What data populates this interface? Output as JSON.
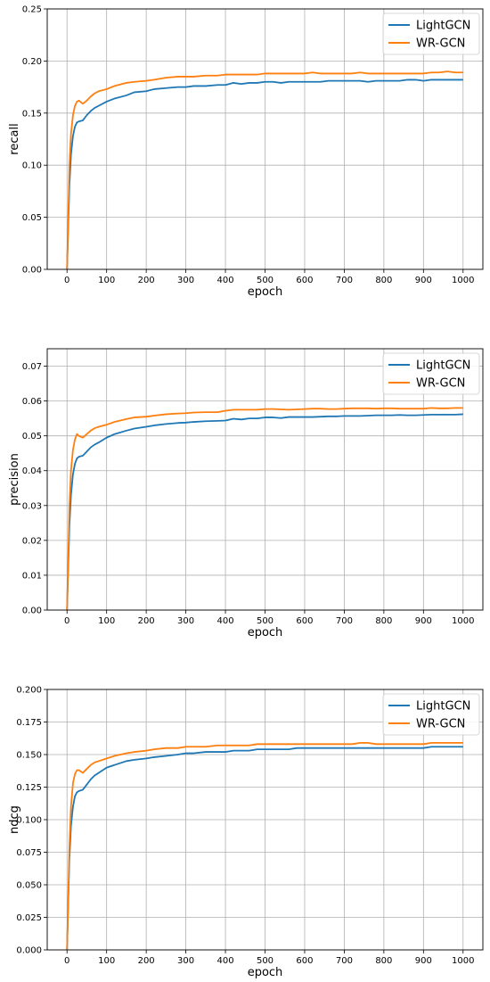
{
  "chart_data": [
    {
      "type": "line",
      "xlabel": "epoch",
      "ylabel": "recall",
      "xlim": [
        -50,
        1050
      ],
      "ylim": [
        0,
        0.25
      ],
      "xticks": [
        0,
        100,
        200,
        300,
        400,
        500,
        600,
        700,
        800,
        900,
        1000
      ],
      "yticks": [
        "0.00",
        "0.05",
        "0.10",
        "0.15",
        "0.20",
        "0.25"
      ],
      "grid": true,
      "legend_position": "top-right",
      "x": [
        0,
        3,
        6,
        10,
        15,
        20,
        25,
        30,
        40,
        50,
        60,
        70,
        80,
        100,
        120,
        150,
        170,
        200,
        220,
        250,
        280,
        300,
        320,
        350,
        380,
        400,
        420,
        440,
        460,
        480,
        500,
        520,
        540,
        560,
        580,
        600,
        620,
        640,
        660,
        680,
        700,
        720,
        740,
        760,
        780,
        800,
        820,
        840,
        860,
        880,
        900,
        920,
        940,
        960,
        980,
        1000
      ],
      "series": [
        {
          "name": "LightGCN",
          "color": "#1f77b4",
          "values": [
            0.0,
            0.04,
            0.08,
            0.11,
            0.128,
            0.137,
            0.141,
            0.142,
            0.143,
            0.148,
            0.152,
            0.155,
            0.157,
            0.161,
            0.164,
            0.167,
            0.17,
            0.171,
            0.173,
            0.174,
            0.175,
            0.175,
            0.176,
            0.176,
            0.177,
            0.177,
            0.179,
            0.178,
            0.179,
            0.179,
            0.18,
            0.18,
            0.179,
            0.18,
            0.18,
            0.18,
            0.18,
            0.18,
            0.181,
            0.181,
            0.181,
            0.181,
            0.181,
            0.18,
            0.181,
            0.181,
            0.181,
            0.181,
            0.182,
            0.182,
            0.181,
            0.182,
            0.182,
            0.182,
            0.182,
            0.182
          ]
        },
        {
          "name": "WR-GCN",
          "color": "#ff7f0e",
          "values": [
            0.0,
            0.05,
            0.1,
            0.13,
            0.148,
            0.157,
            0.161,
            0.162,
            0.159,
            0.162,
            0.166,
            0.169,
            0.171,
            0.173,
            0.176,
            0.179,
            0.18,
            0.181,
            0.182,
            0.184,
            0.185,
            0.185,
            0.185,
            0.186,
            0.186,
            0.187,
            0.187,
            0.187,
            0.187,
            0.187,
            0.188,
            0.188,
            0.188,
            0.188,
            0.188,
            0.188,
            0.189,
            0.188,
            0.188,
            0.188,
            0.188,
            0.188,
            0.189,
            0.188,
            0.188,
            0.188,
            0.188,
            0.188,
            0.188,
            0.188,
            0.188,
            0.189,
            0.189,
            0.19,
            0.189,
            0.189
          ]
        }
      ]
    },
    {
      "type": "line",
      "xlabel": "epoch",
      "ylabel": "precision",
      "xlim": [
        -50,
        1050
      ],
      "ylim": [
        0,
        0.075
      ],
      "xticks": [
        0,
        100,
        200,
        300,
        400,
        500,
        600,
        700,
        800,
        900,
        1000
      ],
      "yticks": [
        "0.00",
        "0.01",
        "0.02",
        "0.03",
        "0.04",
        "0.05",
        "0.06",
        "0.07"
      ],
      "grid": true,
      "legend_position": "top-right",
      "x": [
        0,
        3,
        6,
        10,
        15,
        20,
        25,
        30,
        40,
        50,
        60,
        70,
        80,
        100,
        120,
        150,
        170,
        200,
        220,
        250,
        280,
        300,
        320,
        350,
        380,
        400,
        420,
        440,
        460,
        480,
        500,
        520,
        540,
        560,
        580,
        600,
        620,
        640,
        660,
        680,
        700,
        720,
        740,
        760,
        780,
        800,
        820,
        840,
        860,
        880,
        900,
        920,
        940,
        960,
        980,
        1000
      ],
      "series": [
        {
          "name": "LightGCN",
          "color": "#1f77b4",
          "values": [
            0.0,
            0.012,
            0.024,
            0.033,
            0.039,
            0.042,
            0.0435,
            0.044,
            0.0443,
            0.0455,
            0.0467,
            0.0475,
            0.0481,
            0.0495,
            0.0505,
            0.0515,
            0.0521,
            0.0526,
            0.053,
            0.0534,
            0.0537,
            0.0538,
            0.054,
            0.0542,
            0.0543,
            0.0544,
            0.0549,
            0.0547,
            0.055,
            0.055,
            0.0553,
            0.0553,
            0.0551,
            0.0554,
            0.0554,
            0.0554,
            0.0554,
            0.0555,
            0.0556,
            0.0556,
            0.0557,
            0.0557,
            0.0557,
            0.0558,
            0.0559,
            0.0559,
            0.0559,
            0.056,
            0.0559,
            0.0559,
            0.056,
            0.0561,
            0.0561,
            0.0561,
            0.0561,
            0.0562
          ]
        },
        {
          "name": "WR-GCN",
          "color": "#ff7f0e",
          "values": [
            0.0,
            0.015,
            0.03,
            0.04,
            0.046,
            0.049,
            0.0505,
            0.05,
            0.0495,
            0.0505,
            0.0515,
            0.0522,
            0.0526,
            0.0532,
            0.054,
            0.0548,
            0.0553,
            0.0555,
            0.0558,
            0.0562,
            0.0564,
            0.0565,
            0.0567,
            0.0568,
            0.0568,
            0.0572,
            0.0575,
            0.0575,
            0.0575,
            0.0575,
            0.0577,
            0.0577,
            0.0576,
            0.0575,
            0.0576,
            0.0577,
            0.0578,
            0.0578,
            0.0577,
            0.0577,
            0.0578,
            0.0579,
            0.0579,
            0.0579,
            0.0578,
            0.0579,
            0.0579,
            0.0578,
            0.0578,
            0.0578,
            0.0578,
            0.058,
            0.0579,
            0.0579,
            0.058,
            0.058
          ]
        }
      ]
    },
    {
      "type": "line",
      "xlabel": "epoch",
      "ylabel": "ndcg",
      "xlim": [
        -50,
        1050
      ],
      "ylim": [
        0,
        0.2
      ],
      "xticks": [
        0,
        100,
        200,
        300,
        400,
        500,
        600,
        700,
        800,
        900,
        1000
      ],
      "yticks": [
        "0.000",
        "0.025",
        "0.050",
        "0.075",
        "0.100",
        "0.125",
        "0.150",
        "0.175",
        "0.200"
      ],
      "grid": true,
      "legend_position": "top-right",
      "x": [
        0,
        3,
        6,
        10,
        15,
        20,
        25,
        30,
        40,
        50,
        60,
        70,
        80,
        100,
        120,
        150,
        170,
        200,
        220,
        250,
        280,
        300,
        320,
        350,
        380,
        400,
        420,
        440,
        460,
        480,
        500,
        520,
        540,
        560,
        580,
        600,
        620,
        640,
        660,
        680,
        700,
        720,
        740,
        760,
        780,
        800,
        820,
        840,
        860,
        880,
        900,
        920,
        940,
        960,
        980,
        1000
      ],
      "series": [
        {
          "name": "LightGCN",
          "color": "#1f77b4",
          "values": [
            0.0,
            0.035,
            0.07,
            0.095,
            0.11,
            0.118,
            0.121,
            0.122,
            0.123,
            0.127,
            0.131,
            0.134,
            0.136,
            0.14,
            0.142,
            0.145,
            0.146,
            0.147,
            0.148,
            0.149,
            0.15,
            0.151,
            0.151,
            0.152,
            0.152,
            0.152,
            0.153,
            0.153,
            0.153,
            0.154,
            0.154,
            0.154,
            0.154,
            0.154,
            0.155,
            0.155,
            0.155,
            0.155,
            0.155,
            0.155,
            0.155,
            0.155,
            0.155,
            0.155,
            0.155,
            0.155,
            0.155,
            0.155,
            0.155,
            0.155,
            0.155,
            0.156,
            0.156,
            0.156,
            0.156,
            0.156
          ]
        },
        {
          "name": "WR-GCN",
          "color": "#ff7f0e",
          "values": [
            0.0,
            0.04,
            0.08,
            0.11,
            0.128,
            0.135,
            0.138,
            0.138,
            0.136,
            0.139,
            0.142,
            0.144,
            0.145,
            0.147,
            0.149,
            0.151,
            0.152,
            0.153,
            0.154,
            0.155,
            0.155,
            0.156,
            0.156,
            0.156,
            0.157,
            0.157,
            0.157,
            0.157,
            0.157,
            0.158,
            0.158,
            0.158,
            0.158,
            0.158,
            0.158,
            0.158,
            0.158,
            0.158,
            0.158,
            0.158,
            0.158,
            0.158,
            0.159,
            0.159,
            0.158,
            0.158,
            0.158,
            0.158,
            0.158,
            0.158,
            0.158,
            0.159,
            0.159,
            0.159,
            0.159,
            0.159
          ]
        }
      ]
    }
  ]
}
